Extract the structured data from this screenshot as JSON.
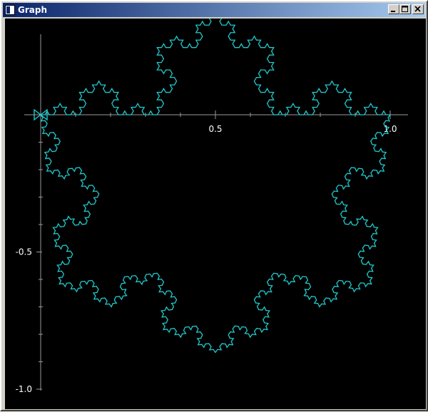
{
  "window": {
    "title": "Graph",
    "icon": "graph-window-icon"
  },
  "title_buttons": {
    "minimize": "minimize-icon",
    "maximize": "maximize-icon",
    "close": "close-icon"
  },
  "colors": {
    "background": "#000000",
    "axis": "#9a9a9a",
    "curve": "#22c8cc",
    "text": "#ffffff"
  },
  "chart_data": {
    "type": "line",
    "title": "",
    "xlabel": "",
    "ylabel": "",
    "xlim": [
      0,
      1.0
    ],
    "ylim": [
      -1.0,
      0.05
    ],
    "x_tick_labels": [
      "0.5",
      "1.0"
    ],
    "y_tick_labels": [
      "-0.5",
      "-1.0"
    ],
    "x_minor_ticks": [
      0.1,
      0.2,
      0.3,
      0.4,
      0.6,
      0.7,
      0.8,
      0.9
    ],
    "y_minor_ticks": [
      -0.1,
      -0.2,
      -0.3,
      -0.4,
      -0.6,
      -0.7,
      -0.8,
      -0.9
    ],
    "curve": "Koch snowflake",
    "curve_vertices": [
      [
        0,
        0
      ],
      [
        1,
        0
      ],
      [
        0.5,
        -0.866
      ]
    ],
    "iterations": 4,
    "start_marker": "bowtie",
    "grid": false
  }
}
